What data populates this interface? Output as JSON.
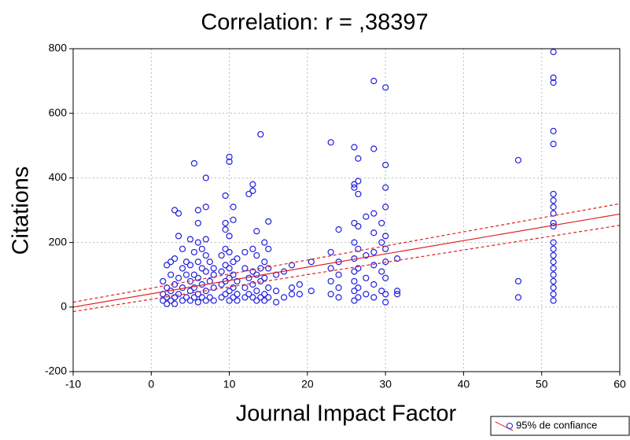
{
  "chart_data": {
    "type": "scatter",
    "title": "Correlation: r = ,38397",
    "xlabel": "Journal Impact Factor",
    "ylabel": "Citations",
    "legend": "95% de confiance",
    "xlim": [
      -10,
      60
    ],
    "xticks": [
      -10,
      0,
      10,
      20,
      30,
      40,
      50,
      60
    ],
    "ylim": [
      -200,
      800
    ],
    "yticks": [
      -200,
      0,
      200,
      400,
      600,
      800
    ],
    "grid": true,
    "series": [
      {
        "color": "#2020e0",
        "x": [
          1.5,
          1.5,
          1.5,
          2,
          2,
          2,
          2,
          2.5,
          2.5,
          2.5,
          2.5,
          3,
          3,
          3,
          3,
          3,
          3.5,
          3.5,
          3.5,
          3.5,
          4,
          4,
          4,
          4,
          4.5,
          4.5,
          4.5,
          5,
          5,
          5,
          5,
          5,
          5.5,
          5.5,
          5.5,
          5.5,
          5.5,
          6,
          6,
          6,
          6,
          6,
          6,
          6,
          6.5,
          6.5,
          6.5,
          6.5,
          7,
          7,
          7,
          7,
          7,
          7,
          7,
          7.5,
          7.5,
          7.5,
          8,
          8,
          8,
          8,
          9,
          9,
          9,
          9,
          9.5,
          9.5,
          9.5,
          9.5,
          9.5,
          9.5,
          9.5,
          10,
          10,
          10,
          10,
          10,
          10,
          10,
          10,
          10.5,
          10.5,
          10.5,
          10.5,
          10.5,
          10.5,
          11,
          11,
          11,
          11,
          12,
          12,
          12,
          12,
          12.5,
          12.5,
          12.5,
          13,
          13,
          13,
          13,
          13,
          13,
          13.5,
          13.5,
          13.5,
          13.5,
          13.5,
          14,
          14,
          14,
          14,
          14.5,
          14.5,
          14.5,
          14.5,
          14.5,
          15,
          15,
          15,
          15,
          15,
          16,
          16,
          16,
          17,
          17,
          18,
          18,
          18,
          19,
          19,
          20.5,
          20.5,
          23,
          23,
          23,
          23,
          23,
          24,
          24,
          24,
          24,
          24,
          26,
          26,
          26,
          26,
          26,
          26,
          26,
          26,
          26,
          26,
          26.5,
          26.5,
          26.5,
          26.5,
          26.5,
          26.5,
          26.5,
          26.5,
          27.5,
          27.5,
          27.5,
          27.5,
          28.5,
          28.5,
          28.5,
          28.5,
          28.5,
          28.5,
          28.5,
          28.5,
          29.5,
          29.5,
          29.5,
          29.5,
          30,
          30,
          30,
          30,
          30,
          30,
          30,
          30,
          30,
          30,
          31.5,
          31.5,
          31.5,
          47,
          47,
          47,
          51.5,
          51.5,
          51.5,
          51.5,
          51.5,
          51.5,
          51.5,
          51.5,
          51.5,
          51.5,
          51.5,
          51.5,
          51.5,
          51.5,
          51.5,
          51.5,
          51.5,
          51.5,
          51.5,
          51.5,
          51.5
        ],
        "values": [
          40,
          80,
          20,
          60,
          130,
          10,
          30,
          100,
          140,
          50,
          20,
          300,
          150,
          70,
          30,
          10,
          220,
          290,
          90,
          40,
          60,
          120,
          20,
          180,
          100,
          30,
          140,
          210,
          80,
          50,
          20,
          130,
          445,
          170,
          100,
          60,
          30,
          300,
          260,
          200,
          140,
          90,
          40,
          15,
          120,
          70,
          30,
          180,
          400,
          310,
          210,
          160,
          110,
          50,
          20,
          140,
          80,
          30,
          100,
          60,
          20,
          120,
          160,
          110,
          70,
          30,
          345,
          260,
          240,
          180,
          130,
          80,
          40,
          465,
          450,
          220,
          170,
          120,
          90,
          50,
          20,
          310,
          270,
          140,
          100,
          60,
          30,
          150,
          80,
          40,
          20,
          170,
          120,
          60,
          30,
          350,
          90,
          40,
          380,
          360,
          180,
          110,
          70,
          30,
          235,
          160,
          100,
          50,
          20,
          535,
          120,
          80,
          30,
          200,
          140,
          90,
          40,
          20,
          265,
          180,
          120,
          60,
          30,
          100,
          50,
          15,
          30,
          110,
          130,
          60,
          40,
          40,
          70,
          140,
          50,
          510,
          170,
          120,
          80,
          40,
          240,
          140,
          100,
          60,
          30,
          495,
          380,
          370,
          260,
          200,
          150,
          110,
          80,
          50,
          20,
          460,
          390,
          350,
          250,
          180,
          120,
          60,
          30,
          280,
          160,
          90,
          40,
          700,
          490,
          290,
          230,
          170,
          130,
          70,
          30,
          260,
          200,
          110,
          50,
          680,
          440,
          370,
          310,
          220,
          180,
          140,
          90,
          40,
          15,
          150,
          50,
          40,
          455,
          80,
          30,
          790,
          710,
          695,
          545,
          505,
          350,
          330,
          310,
          290,
          260,
          250,
          200,
          180,
          160,
          140,
          120,
          100,
          80,
          60,
          40,
          20
        ]
      }
    ],
    "fit": {
      "color": "#e02020",
      "x": [
        -10,
        60
      ],
      "y": [
        0,
        288
      ]
    },
    "upper": {
      "x": [
        -10,
        60
      ],
      "y": [
        15,
        320
      ]
    },
    "lower": {
      "x": [
        -10,
        60
      ],
      "y": [
        -14,
        253
      ]
    }
  }
}
